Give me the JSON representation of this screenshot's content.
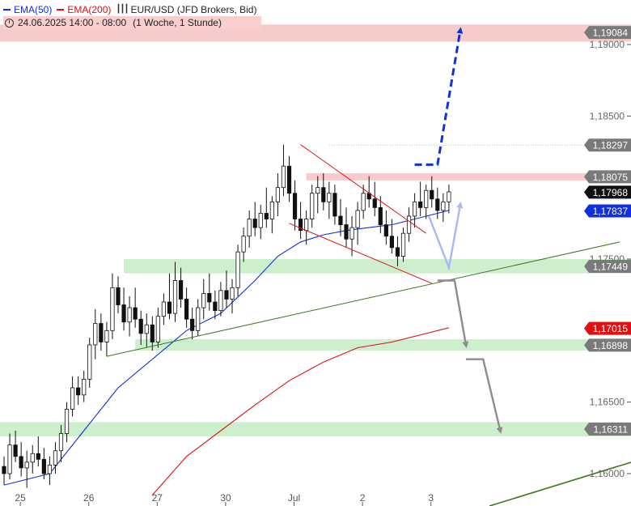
{
  "legend": {
    "ema50_label": "EMA(50)",
    "ema200_label": "EMA(200)",
    "instrument": "EUR/USD (JFD Brokers, Bid)",
    "period": "24.06.2025 14:00 - 08:00",
    "timeframe": "(1 Woche, 1 Stunde)"
  },
  "colors": {
    "ema50": "#1030e0",
    "ema200": "#e01010",
    "bull_target": "#1030e0",
    "support_zone": "#c4ecc4",
    "resistance_zone": "#f6c2c2",
    "trendline": "#3a7a20",
    "wedge": "#e01010",
    "bear_arrow": "#8c8c8c",
    "bounce_arrow": "#a8b8f4"
  },
  "chart_data": {
    "type": "candlestick",
    "instrument": "EUR/USD",
    "timeframe": "1 Stunde",
    "ylim": [
      1.1587,
      1.1922
    ],
    "grid": false,
    "y_ticks": [
      {
        "value": 1.19,
        "label": "1,19000"
      },
      {
        "value": 1.185,
        "label": "1,18500"
      },
      {
        "value": 1.175,
        "label": "1,17500"
      },
      {
        "value": 1.165,
        "label": "1,16500"
      },
      {
        "value": 1.16,
        "label": "1,16000"
      }
    ],
    "x_ticks": [
      {
        "index": 2,
        "label": "25"
      },
      {
        "index": 14,
        "label": "26"
      },
      {
        "index": 26,
        "label": "27"
      },
      {
        "index": 38,
        "label": "30"
      },
      {
        "index": 50,
        "label": "Jul"
      },
      {
        "index": 62,
        "label": "2"
      },
      {
        "index": 74,
        "label": "3"
      }
    ],
    "price_labels": [
      {
        "value": 1.19084,
        "label": "1,19084",
        "style": "grey"
      },
      {
        "value": 1.18297,
        "label": "1,18297",
        "style": "grey"
      },
      {
        "value": 1.18075,
        "label": "1,18075",
        "style": "grey"
      },
      {
        "value": 1.17968,
        "label": "1,17968",
        "style": "black"
      },
      {
        "value": 1.17837,
        "label": "1,17837",
        "style": "blue"
      },
      {
        "value": 1.17449,
        "label": "1,17449",
        "style": "grey"
      },
      {
        "value": 1.17015,
        "label": "1,17015",
        "style": "red"
      },
      {
        "value": 1.16898,
        "label": "1,16898",
        "style": "grey"
      },
      {
        "value": 1.16311,
        "label": "1,16311",
        "style": "grey"
      }
    ],
    "zones": [
      {
        "kind": "resistance",
        "low": 1.1902,
        "high": 1.1914
      },
      {
        "kind": "resistance",
        "low": 1.1805,
        "high": 1.181
      },
      {
        "kind": "support",
        "low": 1.174,
        "high": 1.175
      },
      {
        "kind": "support",
        "low": 1.1686,
        "high": 1.1694
      },
      {
        "kind": "support",
        "low": 1.1626,
        "high": 1.1636
      }
    ],
    "candles": [
      [
        1.1605,
        1.1612,
        1.1592,
        1.16
      ],
      [
        1.16,
        1.1628,
        1.1596,
        1.162
      ],
      [
        1.162,
        1.163,
        1.1608,
        1.1612
      ],
      [
        1.1612,
        1.1622,
        1.1598,
        1.1604
      ],
      [
        1.1604,
        1.1616,
        1.159,
        1.1608
      ],
      [
        1.1608,
        1.162,
        1.16,
        1.1614
      ],
      [
        1.1614,
        1.1626,
        1.1605,
        1.161
      ],
      [
        1.161,
        1.1618,
        1.1596,
        1.16
      ],
      [
        1.16,
        1.1612,
        1.1592,
        1.1606
      ],
      [
        1.1606,
        1.1622,
        1.16,
        1.1616
      ],
      [
        1.1616,
        1.1634,
        1.1608,
        1.1628
      ],
      [
        1.1628,
        1.165,
        1.1622,
        1.1645
      ],
      [
        1.1645,
        1.1668,
        1.164,
        1.166
      ],
      [
        1.166,
        1.1668,
        1.1648,
        1.1655
      ],
      [
        1.1655,
        1.1672,
        1.165,
        1.1666
      ],
      [
        1.1666,
        1.1695,
        1.166,
        1.169
      ],
      [
        1.169,
        1.1715,
        1.168,
        1.1705
      ],
      [
        1.1705,
        1.1712,
        1.1686,
        1.1692
      ],
      [
        1.1692,
        1.1706,
        1.1682,
        1.17
      ],
      [
        1.17,
        1.174,
        1.1694,
        1.173
      ],
      [
        1.173,
        1.1738,
        1.1712,
        1.1718
      ],
      [
        1.1718,
        1.173,
        1.17,
        1.1706
      ],
      [
        1.1706,
        1.1724,
        1.1696,
        1.1716
      ],
      [
        1.1716,
        1.173,
        1.1702,
        1.1708
      ],
      [
        1.1708,
        1.1714,
        1.169,
        1.1698
      ],
      [
        1.1698,
        1.1712,
        1.1688,
        1.1704
      ],
      [
        1.1704,
        1.171,
        1.1686,
        1.1692
      ],
      [
        1.1692,
        1.1716,
        1.1688,
        1.171
      ],
      [
        1.171,
        1.1726,
        1.1704,
        1.172
      ],
      [
        1.172,
        1.174,
        1.1708,
        1.1712
      ],
      [
        1.1712,
        1.1748,
        1.1706,
        1.1735
      ],
      [
        1.1735,
        1.1744,
        1.1716,
        1.1722
      ],
      [
        1.1722,
        1.173,
        1.1702,
        1.1708
      ],
      [
        1.1708,
        1.1716,
        1.1694,
        1.17
      ],
      [
        1.17,
        1.1722,
        1.1696,
        1.1716
      ],
      [
        1.1716,
        1.1736,
        1.1708,
        1.1726
      ],
      [
        1.1726,
        1.174,
        1.1714,
        1.172
      ],
      [
        1.172,
        1.1728,
        1.1708,
        1.1714
      ],
      [
        1.1714,
        1.1734,
        1.171,
        1.1728
      ],
      [
        1.1728,
        1.1742,
        1.1716,
        1.1722
      ],
      [
        1.1722,
        1.1736,
        1.1712,
        1.173
      ],
      [
        1.173,
        1.176,
        1.1724,
        1.1755
      ],
      [
        1.1755,
        1.1772,
        1.1748,
        1.1766
      ],
      [
        1.1766,
        1.1784,
        1.1758,
        1.1778
      ],
      [
        1.1778,
        1.179,
        1.1766,
        1.1772
      ],
      [
        1.1772,
        1.1788,
        1.1764,
        1.1782
      ],
      [
        1.1782,
        1.18,
        1.1772,
        1.1778
      ],
      [
        1.1778,
        1.1794,
        1.1768,
        1.179
      ],
      [
        1.179,
        1.181,
        1.178,
        1.18
      ],
      [
        1.18,
        1.183,
        1.1794,
        1.1815
      ],
      [
        1.1815,
        1.1822,
        1.179,
        1.1796
      ],
      [
        1.1796,
        1.1805,
        1.177,
        1.1778
      ],
      [
        1.1778,
        1.179,
        1.1764,
        1.177
      ],
      [
        1.177,
        1.1784,
        1.176,
        1.1778
      ],
      [
        1.1778,
        1.1802,
        1.1772,
        1.1796
      ],
      [
        1.1796,
        1.1808,
        1.1782,
        1.18
      ],
      [
        1.18,
        1.181,
        1.1784,
        1.179
      ],
      [
        1.179,
        1.1804,
        1.1778,
        1.1796
      ],
      [
        1.1796,
        1.1802,
        1.1774,
        1.178
      ],
      [
        1.178,
        1.1792,
        1.1766,
        1.1774
      ],
      [
        1.1774,
        1.1786,
        1.1758,
        1.1764
      ],
      [
        1.1764,
        1.178,
        1.1752,
        1.1772
      ],
      [
        1.1772,
        1.179,
        1.176,
        1.1784
      ],
      [
        1.1784,
        1.1802,
        1.1778,
        1.1796
      ],
      [
        1.1796,
        1.1808,
        1.1786,
        1.1792
      ],
      [
        1.1792,
        1.1804,
        1.178,
        1.1786
      ],
      [
        1.1786,
        1.1794,
        1.1768,
        1.1774
      ],
      [
        1.1774,
        1.1784,
        1.176,
        1.1766
      ],
      [
        1.1766,
        1.1778,
        1.1754,
        1.1758
      ],
      [
        1.1758,
        1.1766,
        1.1745,
        1.1752
      ],
      [
        1.1752,
        1.1772,
        1.1748,
        1.1768
      ],
      [
        1.1768,
        1.1786,
        1.1762,
        1.178
      ],
      [
        1.178,
        1.1796,
        1.1772,
        1.179
      ],
      [
        1.179,
        1.1804,
        1.178,
        1.1786
      ],
      [
        1.1786,
        1.1802,
        1.1778,
        1.1798
      ],
      [
        1.1798,
        1.1808,
        1.1786,
        1.1792
      ],
      [
        1.1792,
        1.18,
        1.1778,
        1.1784
      ],
      [
        1.1784,
        1.1796,
        1.1776,
        1.179
      ],
      [
        1.179,
        1.1802,
        1.1782,
        1.1797
      ]
    ],
    "ema50": [
      [
        0,
        1.1592
      ],
      [
        8,
        1.16
      ],
      [
        14,
        1.163
      ],
      [
        20,
        1.166
      ],
      [
        26,
        1.168
      ],
      [
        32,
        1.17
      ],
      [
        38,
        1.1712
      ],
      [
        44,
        1.1735
      ],
      [
        48,
        1.1752
      ],
      [
        52,
        1.1762
      ],
      [
        56,
        1.1767
      ],
      [
        60,
        1.177
      ],
      [
        64,
        1.1772
      ],
      [
        68,
        1.1774
      ],
      [
        72,
        1.1778
      ],
      [
        76,
        1.1782
      ],
      [
        78,
        1.1784
      ]
    ],
    "ema200": [
      [
        26,
        1.1585
      ],
      [
        32,
        1.1612
      ],
      [
        38,
        1.163
      ],
      [
        44,
        1.1648
      ],
      [
        50,
        1.1665
      ],
      [
        56,
        1.1678
      ],
      [
        62,
        1.1688
      ],
      [
        68,
        1.1692
      ],
      [
        74,
        1.1698
      ],
      [
        78,
        1.1702
      ]
    ],
    "trendlines": [
      {
        "kind": "support",
        "from": [
          18,
          1.1682
        ],
        "to": [
          108,
          1.1762
        ]
      },
      {
        "kind": "wedge-upper",
        "from": [
          52,
          1.183
        ],
        "to": [
          74,
          1.1768
        ]
      },
      {
        "kind": "wedge-lower",
        "from": [
          50,
          1.1775
        ],
        "to": [
          75,
          1.1733
        ]
      }
    ],
    "scenario_arrows": [
      {
        "kind": "bullish",
        "points": [
          [
            72,
            1.1816
          ],
          [
            76,
            1.1816
          ],
          [
            80,
            1.191
          ]
        ]
      },
      {
        "kind": "bounce",
        "points": [
          [
            74.5,
            1.178
          ],
          [
            78,
            1.1744
          ],
          [
            80,
            1.1788
          ]
        ]
      },
      {
        "kind": "bearish",
        "points": [
          [
            76,
            1.1735
          ],
          [
            79,
            1.1735
          ],
          [
            81,
            1.169
          ]
        ]
      },
      {
        "kind": "bearish",
        "points": [
          [
            81,
            1.168
          ],
          [
            84,
            1.168
          ],
          [
            87,
            1.163
          ]
        ]
      }
    ]
  }
}
